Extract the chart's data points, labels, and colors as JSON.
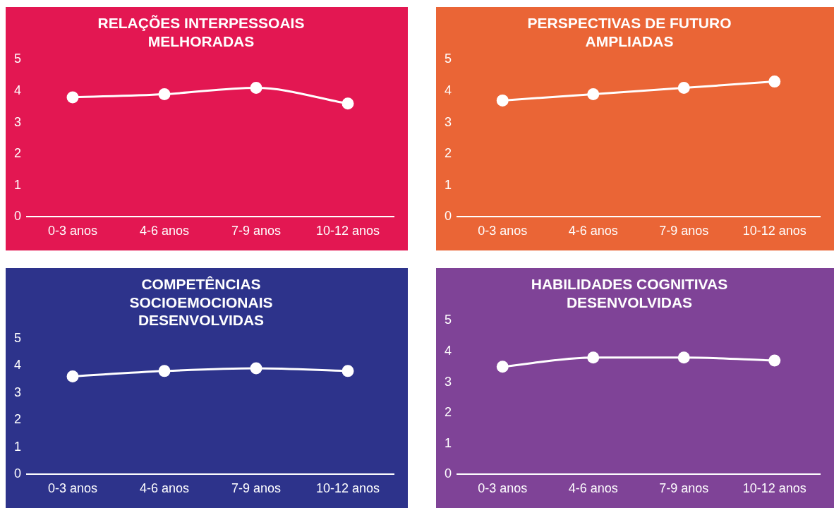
{
  "chart_data": [
    {
      "type": "line",
      "title": "RELAÇÕES INTERPESSOAIS\nMELHORADAS",
      "categories": [
        "0-3 anos",
        "4-6 anos",
        "7-9 anos",
        "10-12 anos"
      ],
      "series": [
        {
          "color": "#ffffff",
          "values": [
            3.8,
            3.9,
            4.1,
            3.6
          ]
        }
      ],
      "ylim": [
        0,
        5
      ],
      "yticks": [
        0,
        1,
        2,
        3,
        4,
        5
      ],
      "grid": false,
      "legend": false,
      "marker": "circle",
      "line_style": "solid"
    },
    {
      "type": "line",
      "title": "PERSPECTIVAS DE FUTURO\nAMPLIADAS",
      "categories": [
        "0-3 anos",
        "4-6 anos",
        "7-9 anos",
        "10-12 anos"
      ],
      "series": [
        {
          "color": "#ffffff",
          "values": [
            3.7,
            3.9,
            4.1,
            4.3
          ]
        }
      ],
      "ylim": [
        0,
        5
      ],
      "yticks": [
        0,
        1,
        2,
        3,
        4,
        5
      ],
      "grid": false,
      "legend": false,
      "marker": "circle",
      "line_style": "solid"
    },
    {
      "type": "line",
      "title": "COMPETÊNCIAS\nSOCIOEMOCIONAIS\nDESENVOLVIDAS",
      "categories": [
        "0-3 anos",
        "4-6 anos",
        "7-9 anos",
        "10-12 anos"
      ],
      "series": [
        {
          "color": "#ffffff",
          "values": [
            3.6,
            3.8,
            3.9,
            3.8
          ]
        }
      ],
      "ylim": [
        0,
        5
      ],
      "yticks": [
        0,
        1,
        2,
        3,
        4,
        5
      ],
      "grid": false,
      "legend": false,
      "marker": "circle",
      "line_style": "solid"
    },
    {
      "type": "line",
      "title": "HABILIDADES COGNITIVAS\nDESENVOLVIDAS",
      "categories": [
        "0-3 anos",
        "4-6 anos",
        "7-9 anos",
        "10-12 anos"
      ],
      "series": [
        {
          "color": "#ffffff",
          "values": [
            3.5,
            3.8,
            3.8,
            3.7
          ]
        }
      ],
      "ylim": [
        0,
        5
      ],
      "yticks": [
        0,
        1,
        2,
        3,
        4,
        5
      ],
      "grid": false,
      "legend": false,
      "marker": "circle",
      "line_style": "solid"
    }
  ]
}
